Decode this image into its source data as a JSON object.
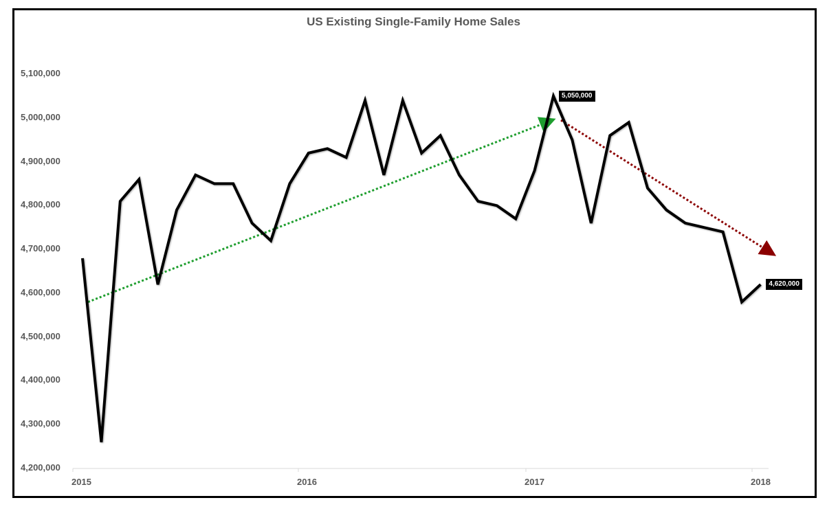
{
  "chart_data": {
    "type": "line",
    "title": "US Existing Single-Family Home Sales",
    "xlabel": "",
    "ylabel": "",
    "ylim": [
      4200000,
      5100000
    ],
    "y_ticks": [
      "4,200,000",
      "4,300,000",
      "4,400,000",
      "4,500,000",
      "4,600,000",
      "4,700,000",
      "4,800,000",
      "4,900,000",
      "5,000,000",
      "5,100,000"
    ],
    "x_ticks": [
      "2015",
      "2016",
      "2017",
      "2018"
    ],
    "grid": false,
    "legend": null,
    "x": [
      "2015-01",
      "2015-02",
      "2015-03",
      "2015-04",
      "2015-05",
      "2015-06",
      "2015-07",
      "2015-08",
      "2015-09",
      "2015-10",
      "2015-11",
      "2015-12",
      "2016-01",
      "2016-02",
      "2016-03",
      "2016-04",
      "2016-05",
      "2016-06",
      "2016-07",
      "2016-08",
      "2016-09",
      "2016-10",
      "2016-11",
      "2016-12",
      "2017-01",
      "2017-02",
      "2017-03",
      "2017-04",
      "2017-05",
      "2017-06",
      "2017-07",
      "2017-08",
      "2017-09",
      "2017-10",
      "2017-11",
      "2017-12",
      "2018-01"
    ],
    "series": [
      {
        "name": "Existing Single-Family Home Sales",
        "color": "#000000",
        "values": [
          4680000,
          4260000,
          4810000,
          4860000,
          4620000,
          4790000,
          4870000,
          4850000,
          4850000,
          4760000,
          4720000,
          4850000,
          4920000,
          4930000,
          4910000,
          5040000,
          4870000,
          5040000,
          4920000,
          4960000,
          4870000,
          4810000,
          4800000,
          4770000,
          4880000,
          5050000,
          4950000,
          4760000,
          4960000,
          4990000,
          4840000,
          4790000,
          4760000,
          4750000,
          4740000,
          4580000,
          4620000
        ]
      }
    ],
    "annotations": [
      {
        "type": "data_label",
        "text": "5,050,000",
        "at": "2017-02"
      },
      {
        "type": "data_label",
        "text": "4,620,000",
        "at": "2018-01"
      },
      {
        "type": "trend_arrow",
        "color": "#1e9e2e",
        "style": "dotted",
        "from": [
          "2015-01",
          4580000
        ],
        "to": [
          "2017-01",
          4995000
        ]
      },
      {
        "type": "trend_arrow",
        "color": "#8b0000",
        "style": "dotted",
        "from": [
          "2017-03",
          4995000
        ],
        "to": [
          "2018-01",
          4690000
        ]
      }
    ]
  },
  "labels": {
    "peak": "5,050,000",
    "last": "4,620,000"
  }
}
